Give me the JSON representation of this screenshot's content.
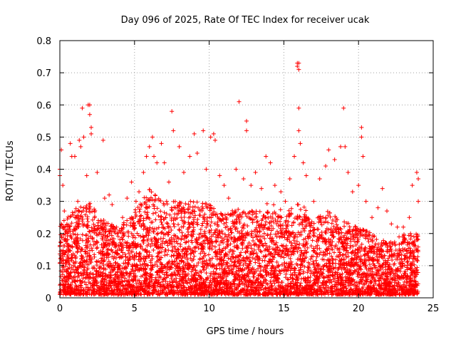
{
  "chart_data": {
    "type": "scatter",
    "title": "Day 096 of 2025, Rate Of TEC Index for receiver ucak",
    "xlabel": "GPS time / hours",
    "ylabel": "ROTI / TECUs",
    "xlim": [
      0,
      25
    ],
    "ylim": [
      0,
      0.8
    ],
    "xticks": [
      0,
      5,
      10,
      15,
      20,
      25
    ],
    "xtick_labels": [
      "0",
      "5",
      "10",
      "15",
      "20",
      "25"
    ],
    "yticks": [
      0,
      0.1,
      0.2,
      0.3,
      0.4,
      0.5,
      0.6,
      0.7,
      0.8
    ],
    "ytick_labels": [
      "0",
      "0.1",
      "0.2",
      "0.3",
      "0.4",
      "0.5",
      "0.6",
      "0.7",
      "0.8"
    ],
    "grid": true,
    "marker": "plus",
    "color": "#ff0000",
    "series": [
      {
        "name": "",
        "points": [
          [
            0.0,
            0.4
          ],
          [
            0.0,
            0.38
          ],
          [
            0.1,
            0.46
          ],
          [
            0.2,
            0.35
          ],
          [
            0.3,
            0.27
          ],
          [
            0.5,
            0.2
          ],
          [
            0.7,
            0.48
          ],
          [
            0.8,
            0.44
          ],
          [
            1.0,
            0.44
          ],
          [
            1.2,
            0.3
          ],
          [
            1.3,
            0.49
          ],
          [
            1.4,
            0.47
          ],
          [
            1.5,
            0.59
          ],
          [
            1.6,
            0.5
          ],
          [
            1.8,
            0.38
          ],
          [
            1.9,
            0.6
          ],
          [
            2.0,
            0.6
          ],
          [
            2.0,
            0.57
          ],
          [
            2.1,
            0.53
          ],
          [
            2.1,
            0.51
          ],
          [
            2.5,
            0.39
          ],
          [
            2.9,
            0.49
          ],
          [
            3.0,
            0.31
          ],
          [
            3.3,
            0.32
          ],
          [
            3.5,
            0.29
          ],
          [
            3.8,
            0.22
          ],
          [
            4.2,
            0.25
          ],
          [
            4.5,
            0.31
          ],
          [
            4.8,
            0.36
          ],
          [
            5.1,
            0.3
          ],
          [
            5.3,
            0.33
          ],
          [
            5.6,
            0.39
          ],
          [
            5.8,
            0.44
          ],
          [
            6.0,
            0.47
          ],
          [
            6.2,
            0.5
          ],
          [
            6.3,
            0.44
          ],
          [
            6.5,
            0.42
          ],
          [
            6.8,
            0.48
          ],
          [
            7.0,
            0.42
          ],
          [
            7.3,
            0.36
          ],
          [
            7.5,
            0.58
          ],
          [
            7.6,
            0.52
          ],
          [
            8.0,
            0.47
          ],
          [
            8.3,
            0.39
          ],
          [
            8.7,
            0.44
          ],
          [
            9.0,
            0.51
          ],
          [
            9.2,
            0.45
          ],
          [
            9.6,
            0.52
          ],
          [
            9.8,
            0.4
          ],
          [
            10.1,
            0.5
          ],
          [
            10.3,
            0.51
          ],
          [
            10.4,
            0.49
          ],
          [
            10.7,
            0.38
          ],
          [
            11.0,
            0.35
          ],
          [
            11.3,
            0.31
          ],
          [
            11.8,
            0.4
          ],
          [
            12.0,
            0.61
          ],
          [
            12.3,
            0.37
          ],
          [
            12.5,
            0.55
          ],
          [
            12.5,
            0.52
          ],
          [
            12.8,
            0.35
          ],
          [
            13.1,
            0.39
          ],
          [
            13.5,
            0.34
          ],
          [
            13.8,
            0.44
          ],
          [
            14.1,
            0.42
          ],
          [
            14.4,
            0.35
          ],
          [
            14.8,
            0.33
          ],
          [
            15.1,
            0.3
          ],
          [
            15.4,
            0.37
          ],
          [
            15.7,
            0.44
          ],
          [
            15.9,
            0.73
          ],
          [
            15.9,
            0.72
          ],
          [
            16.0,
            0.71
          ],
          [
            16.0,
            0.73
          ],
          [
            16.0,
            0.59
          ],
          [
            16.0,
            0.52
          ],
          [
            16.1,
            0.48
          ],
          [
            16.3,
            0.42
          ],
          [
            16.5,
            0.38
          ],
          [
            17.0,
            0.3
          ],
          [
            17.4,
            0.37
          ],
          [
            17.8,
            0.41
          ],
          [
            18.0,
            0.46
          ],
          [
            18.4,
            0.43
          ],
          [
            18.8,
            0.47
          ],
          [
            19.0,
            0.59
          ],
          [
            19.1,
            0.47
          ],
          [
            19.3,
            0.39
          ],
          [
            19.6,
            0.33
          ],
          [
            20.0,
            0.35
          ],
          [
            20.2,
            0.53
          ],
          [
            20.2,
            0.5
          ],
          [
            20.3,
            0.44
          ],
          [
            20.5,
            0.3
          ],
          [
            20.9,
            0.25
          ],
          [
            21.3,
            0.28
          ],
          [
            21.6,
            0.34
          ],
          [
            21.9,
            0.27
          ],
          [
            22.2,
            0.23
          ],
          [
            22.6,
            0.22
          ],
          [
            23.0,
            0.22
          ],
          [
            23.4,
            0.25
          ],
          [
            23.6,
            0.35
          ],
          [
            23.9,
            0.39
          ],
          [
            24.0,
            0.37
          ],
          [
            24.0,
            0.3
          ]
        ],
        "dense_band": {
          "description_free": true,
          "x_range": [
            0,
            24
          ],
          "y_floor": 0.01,
          "y_typical_max": [
            [
              0,
              0.23
            ],
            [
              1,
              0.28
            ],
            [
              2,
              0.3
            ],
            [
              3,
              0.24
            ],
            [
              4,
              0.22
            ],
            [
              5,
              0.27
            ],
            [
              6,
              0.34
            ],
            [
              7,
              0.3
            ],
            [
              8,
              0.3
            ],
            [
              9,
              0.3
            ],
            [
              10,
              0.3
            ],
            [
              11,
              0.26
            ],
            [
              12,
              0.28
            ],
            [
              13,
              0.27
            ],
            [
              14,
              0.3
            ],
            [
              15,
              0.27
            ],
            [
              16,
              0.3
            ],
            [
              17,
              0.25
            ],
            [
              18,
              0.27
            ],
            [
              19,
              0.24
            ],
            [
              20,
              0.22
            ],
            [
              21,
              0.2
            ],
            [
              22,
              0.17
            ],
            [
              23,
              0.2
            ],
            [
              24,
              0.2
            ]
          ]
        }
      }
    ]
  }
}
